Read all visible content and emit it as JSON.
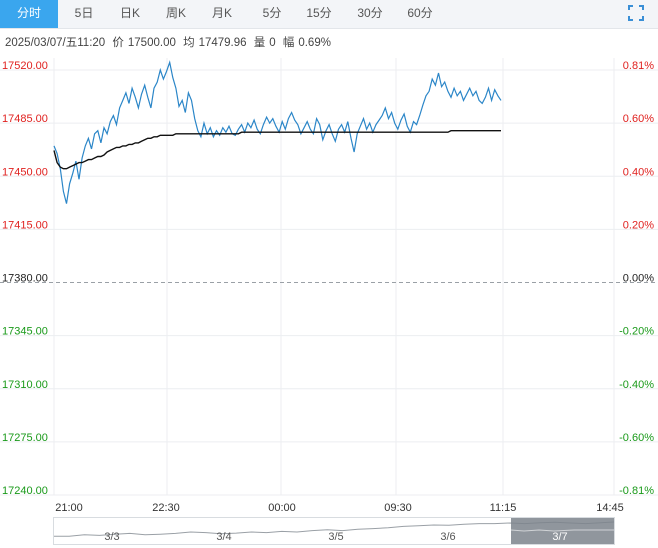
{
  "tabs": [
    "分时",
    "5日",
    "日K",
    "周K",
    "月K",
    "5分",
    "15分",
    "30分",
    "60分"
  ],
  "active_tab": 0,
  "info": {
    "datetime": "2025/03/07/五11:20",
    "price_label": "价",
    "price": "17500.00",
    "avg_label": "均",
    "avg": "17479.96",
    "volume_label": "量",
    "volume": "0",
    "change_label": "幅",
    "change": "0.69%"
  },
  "colors": {
    "up": "#e0211f",
    "down": "#1a9a1a",
    "neutral": "#222222",
    "price_line": "#2b86c8",
    "avg_line": "#111111",
    "active_tab": "#3aa6ee"
  },
  "chart_data": {
    "type": "line",
    "base": 17380.0,
    "ylim": [
      17240,
      17520
    ],
    "y_ticks": [
      "17520.00",
      "17485.00",
      "17450.00",
      "17415.00",
      "17380.00",
      "17345.00",
      "17310.00",
      "17275.00",
      "17240.00"
    ],
    "pct_ticks": [
      "0.81%",
      "0.60%",
      "0.40%",
      "0.20%",
      "0.00%",
      "-0.20%",
      "-0.40%",
      "-0.60%",
      "-0.81%"
    ],
    "x_ticks": [
      "21:00",
      "22:30",
      "00:00",
      "09:30",
      "11:15",
      "14:45"
    ],
    "series": [
      {
        "name": "price",
        "values": [
          17470,
          17465,
          17455,
          17440,
          17432,
          17445,
          17452,
          17460,
          17448,
          17462,
          17470,
          17475,
          17468,
          17478,
          17480,
          17472,
          17482,
          17478,
          17486,
          17490,
          17484,
          17495,
          17500,
          17505,
          17498,
          17508,
          17502,
          17495,
          17504,
          17510,
          17502,
          17495,
          17508,
          17512,
          17520,
          17514,
          17519,
          17525,
          17515,
          17508,
          17496,
          17500,
          17492,
          17505,
          17500,
          17488,
          17480,
          17476,
          17485,
          17478,
          17482,
          17476,
          17480,
          17477,
          17482,
          17479,
          17483,
          17478,
          17477,
          17481,
          17484,
          17479,
          17485,
          17482,
          17487,
          17481,
          17478,
          17484,
          17489,
          17485,
          17488,
          17483,
          17479,
          17486,
          17481,
          17488,
          17492,
          17487,
          17484,
          17478,
          17482,
          17486,
          17481,
          17478,
          17488,
          17484,
          17474,
          17480,
          17484,
          17478,
          17473,
          17481,
          17484,
          17479,
          17486,
          17475,
          17466,
          17478,
          17483,
          17488,
          17481,
          17485,
          17479,
          17484,
          17487,
          17490,
          17495,
          17488,
          17492,
          17485,
          17481,
          17487,
          17491,
          17483,
          17479,
          17486,
          17484,
          17490,
          17497,
          17503,
          17506,
          17514,
          17510,
          17518,
          17509,
          17512,
          17506,
          17502,
          17508,
          17503,
          17506,
          17500,
          17504,
          17508,
          17503,
          17506,
          17500,
          17498,
          17502,
          17508,
          17500,
          17507,
          17503,
          17500
        ]
      },
      {
        "name": "avg",
        "values": [
          17467,
          17459,
          17456,
          17455,
          17455,
          17456,
          17457,
          17458,
          17459,
          17459,
          17460,
          17461,
          17461,
          17462,
          17463,
          17463,
          17464,
          17466,
          17467,
          17468,
          17469,
          17469,
          17470,
          17470,
          17471,
          17471,
          17472,
          17472,
          17473,
          17474,
          17475,
          17475,
          17476,
          17476,
          17477,
          17477,
          17477,
          17477,
          17477,
          17478,
          17478,
          17478,
          17478,
          17478,
          17478,
          17478,
          17478,
          17478,
          17478,
          17478,
          17478,
          17478,
          17478,
          17478,
          17478,
          17478,
          17478,
          17478,
          17478,
          17478,
          17479,
          17479,
          17479,
          17479,
          17479,
          17479,
          17479,
          17479,
          17479,
          17479,
          17479,
          17479,
          17479,
          17479,
          17479,
          17479,
          17479,
          17479,
          17479,
          17479,
          17479,
          17479,
          17479,
          17479,
          17479,
          17479,
          17479,
          17479,
          17479,
          17479,
          17479,
          17479,
          17479,
          17479,
          17479,
          17479,
          17479,
          17479,
          17479,
          17479,
          17479,
          17479,
          17479,
          17479,
          17479,
          17479,
          17479,
          17479,
          17479,
          17479,
          17479,
          17479,
          17479,
          17479,
          17479,
          17479,
          17479,
          17479,
          17479,
          17479,
          17479,
          17479,
          17479,
          17479,
          17479,
          17479,
          17479,
          17480,
          17480,
          17480,
          17480,
          17480,
          17480,
          17480,
          17480,
          17480,
          17480,
          17480,
          17480,
          17480,
          17480,
          17480,
          17480,
          17480
        ]
      }
    ]
  },
  "navigator": {
    "dates": [
      "3/3",
      "3/4",
      "3/5",
      "3/6",
      "3/7"
    ],
    "profile": [
      0.35,
      0.35,
      0.4,
      0.38,
      0.42,
      0.45,
      0.4,
      0.42,
      0.45,
      0.5,
      0.48,
      0.44,
      0.46,
      0.5,
      0.48,
      0.52,
      0.5,
      0.55,
      0.58,
      0.55,
      0.6,
      0.62,
      0.65,
      0.7,
      0.72,
      0.75,
      0.74,
      0.78,
      0.8,
      0.8,
      0.82,
      0.8,
      0.83,
      0.85,
      0.82,
      0.8,
      0.83,
      0.86
    ]
  }
}
